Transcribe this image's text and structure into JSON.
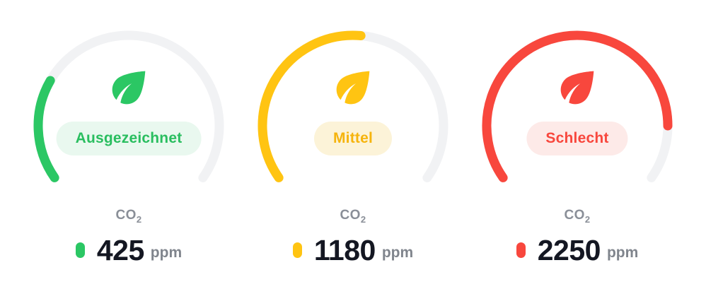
{
  "labels": {
    "co2_base": "CO",
    "co2_sub": "2",
    "unit": "ppm"
  },
  "colors": {
    "background": "#ffffff",
    "track": "#F1F2F4",
    "metric_label": "#8A8F98",
    "value_text": "#141722",
    "unit_text": "#80858D"
  },
  "chart_data": {
    "type": "gauge",
    "metric": "CO2",
    "unit": "ppm",
    "arc": {
      "start_deg": 215,
      "sweep_deg": 250
    },
    "gauges": [
      {
        "status": "Ausgezeichnet",
        "value": 425,
        "fraction": 0.26,
        "color": "#2BC764",
        "badge_bg": "#E9F8EF",
        "badge_text": "#29BE5F"
      },
      {
        "status": "Mittel",
        "value": 1180,
        "fraction": 0.52,
        "color": "#FFC412",
        "badge_bg": "#FCF3D8",
        "badge_text": "#F6B40D"
      },
      {
        "status": "Schlecht",
        "value": 2250,
        "fraction": 0.86,
        "color": "#F8473D",
        "badge_bg": "#FDEAE8",
        "badge_text": "#F8473D"
      }
    ]
  }
}
